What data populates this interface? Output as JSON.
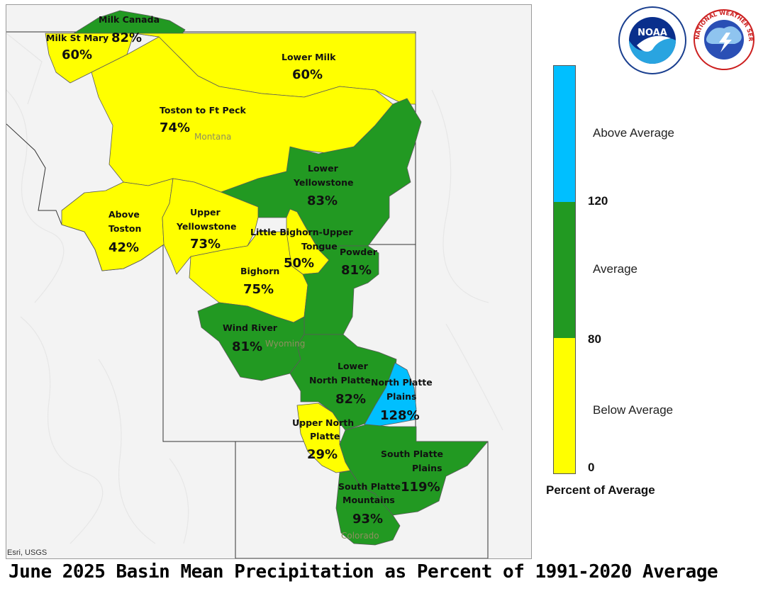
{
  "title": "June 2025 Basin Mean Precipitation as Percent of 1991-2020 Average",
  "credit": "Esri, USGS",
  "colors": {
    "below": "#ffff00",
    "average": "#229922",
    "above": "#00bfff",
    "basemap": "#f2f2f2",
    "border": "#333333"
  },
  "states": [
    "Montana",
    "Wyoming",
    "Colorado"
  ],
  "basins": [
    {
      "name": "Milk Canada",
      "pct": "82%",
      "category": "average"
    },
    {
      "name": "Milk St Mary",
      "pct": "60%",
      "category": "below"
    },
    {
      "name": "Lower Milk",
      "pct": "60%",
      "category": "below"
    },
    {
      "name": "Toston to Ft Peck",
      "pct": "74%",
      "category": "below"
    },
    {
      "name": "Lower Yellowstone",
      "pct": "83%",
      "category": "average"
    },
    {
      "name": "Above Toston",
      "pct": "42%",
      "category": "below"
    },
    {
      "name": "Upper Yellowstone",
      "pct": "73%",
      "category": "below"
    },
    {
      "name": "Little Bighorn-Upper Tongue",
      "pct": "50%",
      "category": "below"
    },
    {
      "name": "Powder",
      "pct": "81%",
      "category": "average"
    },
    {
      "name": "Bighorn",
      "pct": "75%",
      "category": "below"
    },
    {
      "name": "Wind River",
      "pct": "81%",
      "category": "average"
    },
    {
      "name": "Lower North Platte",
      "pct": "82%",
      "category": "average"
    },
    {
      "name": "North Platte Plains",
      "pct": "128%",
      "category": "above"
    },
    {
      "name": "Upper North Platte",
      "pct": "29%",
      "category": "below"
    },
    {
      "name": "South Platte Plains",
      "pct": "119%",
      "category": "average"
    },
    {
      "name": "South Platte Mountains",
      "pct": "93%",
      "category": "average"
    }
  ],
  "legend": {
    "title": "Percent of Average",
    "categories": {
      "above": "Above Average",
      "average": "Average",
      "below": "Below Average"
    },
    "ticks": [
      "120",
      "80",
      "0"
    ]
  },
  "logos": {
    "noaa": "NOAA",
    "nws": "NATIONAL WEATHER SERVICE"
  }
}
